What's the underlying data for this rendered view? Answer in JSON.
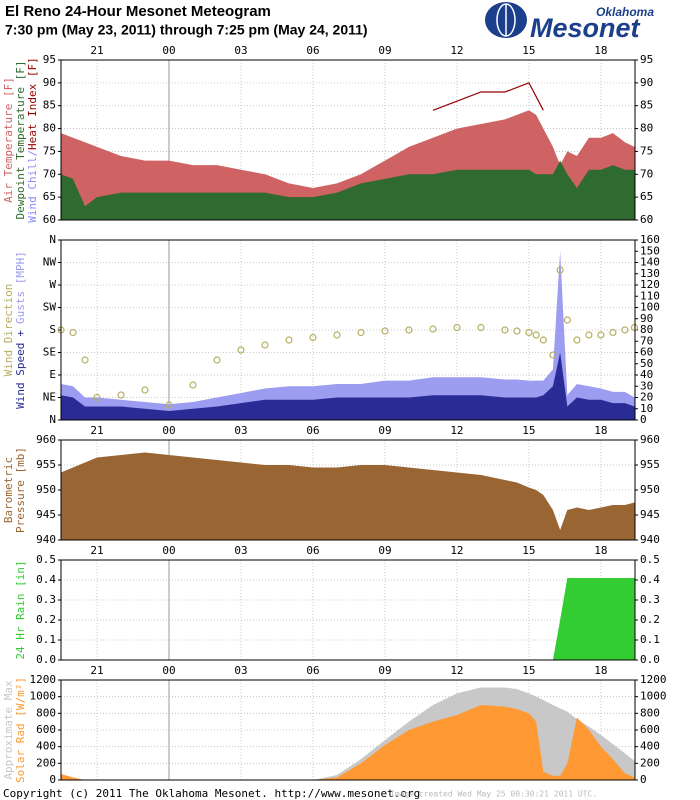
{
  "title": "El Reno 24-Hour Mesonet Meteogram",
  "subtitle": "7:30 pm (May 23, 2011) through 7:25 pm (May 24, 2011)",
  "logo": {
    "top": "Oklahoma",
    "bottom": "Mesonet"
  },
  "footer": {
    "copyright": "Copyright (c) 2011 The Oklahoma Mesonet. http://www.mesonet.org",
    "created": "Image created Wed May 25 00:30:21 2011 UTC."
  },
  "chart_data": [
    {
      "type": "area",
      "grid": true,
      "mirror_y": true,
      "xtick_labels": "top",
      "x": [
        19.5,
        20,
        20.5,
        21,
        22,
        23,
        24,
        25,
        26,
        27,
        28,
        29,
        30,
        31,
        32,
        33,
        34,
        35,
        36,
        37,
        38,
        38.5,
        39,
        39.3,
        39.6,
        40,
        40.3,
        40.6,
        41,
        41.5,
        42,
        42.5,
        43,
        43.4
      ],
      "xlim": [
        19.5,
        43.42
      ],
      "xticks": [
        {
          "value": 21,
          "label": "21"
        },
        {
          "value": 24,
          "label": "00"
        },
        {
          "value": 27,
          "label": "03"
        },
        {
          "value": 30,
          "label": "06"
        },
        {
          "value": 33,
          "label": "09"
        },
        {
          "value": 36,
          "label": "12"
        },
        {
          "value": 39,
          "label": "15"
        },
        {
          "value": 42,
          "label": "18"
        }
      ],
      "ylim": [
        60,
        95
      ],
      "yticks": [
        60,
        65,
        70,
        75,
        80,
        85,
        90,
        95
      ],
      "ylabel_extra": {
        "text": "Wind Chill/",
        "color": "#8c8cff"
      },
      "series": [
        {
          "name": "Air Temperature [F]",
          "color": "#cf6363",
          "values": [
            79,
            78,
            77,
            76,
            74,
            73,
            73,
            72,
            72,
            71,
            70,
            68,
            67,
            68,
            70,
            73,
            76,
            78,
            80,
            81,
            82,
            83,
            84,
            83,
            80,
            76,
            72,
            75,
            74,
            78,
            78,
            79,
            77,
            76
          ]
        },
        {
          "name": "Dewpoint Temperature [F]",
          "color": "#2f6a31",
          "values": [
            70,
            69,
            63,
            65,
            66,
            66,
            66,
            66,
            66,
            66,
            66,
            65,
            65,
            66,
            68,
            69,
            70,
            70,
            71,
            71,
            71,
            71,
            71,
            70,
            70,
            70,
            73,
            70,
            67,
            71,
            71,
            72,
            71,
            71
          ]
        },
        {
          "name": "Heat Index [F]",
          "color": "#990000",
          "type": "line",
          "values": [
            null,
            null,
            null,
            null,
            null,
            null,
            null,
            null,
            null,
            null,
            null,
            null,
            null,
            null,
            null,
            null,
            null,
            84,
            86,
            88,
            88,
            89,
            90,
            87,
            84,
            null,
            null,
            null,
            null,
            null,
            null,
            null,
            null,
            null
          ]
        }
      ]
    },
    {
      "type": "area",
      "grid": true,
      "xtick_labels": "bottom",
      "x": [
        19.5,
        20,
        20.5,
        21,
        22,
        23,
        24,
        25,
        26,
        27,
        28,
        29,
        30,
        31,
        32,
        33,
        34,
        35,
        36,
        37,
        38,
        38.5,
        39,
        39.3,
        39.6,
        40,
        40.3,
        40.6,
        41,
        41.5,
        42,
        42.5,
        43,
        43.4
      ],
      "xlim": [
        19.5,
        43.42
      ],
      "xticks": [
        {
          "value": 21,
          "label": "21"
        },
        {
          "value": 24,
          "label": "00"
        },
        {
          "value": 27,
          "label": "03"
        },
        {
          "value": 30,
          "label": "06"
        },
        {
          "value": 33,
          "label": "09"
        },
        {
          "value": 36,
          "label": "12"
        },
        {
          "value": 39,
          "label": "15"
        },
        {
          "value": 42,
          "label": "18"
        }
      ],
      "ylim": [
        0,
        360
      ],
      "yticks": [
        {
          "value": 0,
          "label": "N"
        },
        {
          "value": 45,
          "label": "NE"
        },
        {
          "value": 90,
          "label": "E"
        },
        {
          "value": 135,
          "label": "SE"
        },
        {
          "value": 180,
          "label": "S"
        },
        {
          "value": 225,
          "label": "SW"
        },
        {
          "value": 270,
          "label": "W"
        },
        {
          "value": 315,
          "label": "NW"
        },
        {
          "value": 360,
          "label": "N"
        }
      ],
      "y2lim": [
        0,
        160
      ],
      "y2ticks": [
        0,
        10,
        20,
        30,
        40,
        50,
        60,
        70,
        80,
        90,
        100,
        110,
        120,
        130,
        140,
        150,
        160
      ],
      "ylabel_join": "+",
      "series": [
        {
          "name": "Gusts [MPH]",
          "color": "#9c9cf0",
          "axis": "y2",
          "values": [
            32,
            30,
            20,
            20,
            18,
            16,
            14,
            16,
            20,
            24,
            28,
            30,
            30,
            32,
            32,
            35,
            35,
            38,
            38,
            38,
            36,
            36,
            35,
            35,
            35,
            45,
            150,
            22,
            32,
            30,
            28,
            25,
            25,
            20
          ]
        },
        {
          "name": "Wind Speed",
          "color": "#2b2b96",
          "axis": "y2",
          "values": [
            22,
            20,
            12,
            12,
            12,
            10,
            8,
            10,
            12,
            15,
            18,
            18,
            18,
            20,
            20,
            20,
            20,
            22,
            22,
            22,
            20,
            20,
            20,
            20,
            22,
            30,
            60,
            12,
            20,
            18,
            18,
            15,
            15,
            12
          ]
        },
        {
          "name": "Wind Direction",
          "color": "#b5ae5e",
          "type": "scatter",
          "values": [
            180,
            175,
            120,
            45,
            50,
            60,
            30,
            70,
            120,
            140,
            150,
            160,
            165,
            170,
            175,
            178,
            180,
            182,
            185,
            185,
            180,
            178,
            175,
            170,
            160,
            130,
            300,
            200,
            160,
            170,
            170,
            175,
            180,
            185
          ]
        }
      ]
    },
    {
      "type": "area",
      "grid": true,
      "mirror_y": true,
      "xtick_labels": "bottom",
      "x": [
        19.5,
        20,
        20.5,
        21,
        22,
        23,
        24,
        25,
        26,
        27,
        28,
        29,
        30,
        31,
        32,
        33,
        34,
        35,
        36,
        37,
        38,
        38.5,
        39,
        39.3,
        39.6,
        40,
        40.3,
        40.6,
        41,
        41.5,
        42,
        42.5,
        43,
        43.4
      ],
      "xlim": [
        19.5,
        43.42
      ],
      "xticks": [
        {
          "value": 21,
          "label": "21"
        },
        {
          "value": 24,
          "label": "00"
        },
        {
          "value": 27,
          "label": "03"
        },
        {
          "value": 30,
          "label": "06"
        },
        {
          "value": 33,
          "label": "09"
        },
        {
          "value": 36,
          "label": "12"
        },
        {
          "value": 39,
          "label": "15"
        },
        {
          "value": 42,
          "label": "18"
        }
      ],
      "ylim": [
        940,
        960
      ],
      "yticks": [
        940,
        945,
        950,
        955,
        960
      ],
      "ylabel": [
        "Barometric",
        "Pressure [mb]"
      ],
      "series": [
        {
          "color": "#996633",
          "values": [
            953.5,
            954.5,
            955.5,
            956.5,
            957,
            957.5,
            957,
            956.5,
            956,
            955.5,
            955,
            955,
            954.5,
            954.5,
            955,
            955,
            954.5,
            954,
            953.5,
            953,
            952,
            951.5,
            950.5,
            950,
            949,
            946,
            942,
            946,
            946.5,
            946,
            946.5,
            947,
            947,
            947.5
          ]
        }
      ]
    },
    {
      "type": "area",
      "grid": true,
      "mirror_y": true,
      "xtick_labels": "bottom",
      "x": [
        19.5,
        20,
        20.5,
        21,
        22,
        23,
        24,
        25,
        26,
        27,
        28,
        29,
        30,
        31,
        32,
        33,
        34,
        35,
        36,
        37,
        38,
        38.5,
        39,
        39.3,
        39.6,
        40,
        40.3,
        40.6,
        41,
        41.5,
        42,
        42.5,
        43,
        43.4
      ],
      "xlim": [
        19.5,
        43.42
      ],
      "xticks": [
        {
          "value": 21,
          "label": "21"
        },
        {
          "value": 24,
          "label": "00"
        },
        {
          "value": 27,
          "label": "03"
        },
        {
          "value": 30,
          "label": "06"
        },
        {
          "value": 33,
          "label": "09"
        },
        {
          "value": 36,
          "label": "12"
        },
        {
          "value": 39,
          "label": "15"
        },
        {
          "value": 42,
          "label": "18"
        }
      ],
      "ylim": [
        0,
        0.5
      ],
      "yticks": [
        {
          "value": 0,
          "label": "0.0"
        },
        0.1,
        0.2,
        0.3,
        0.4,
        0.5
      ],
      "ylabel": "24 Hr Rain [in]",
      "series": [
        {
          "color": "#33cc33",
          "values": [
            0,
            0,
            0,
            0,
            0,
            0,
            0,
            0,
            0,
            0,
            0,
            0,
            0,
            0,
            0,
            0,
            0,
            0,
            0,
            0,
            0,
            0,
            0,
            0,
            0,
            0,
            0.2,
            0.41,
            0.41,
            0.41,
            0.41,
            0.41,
            0.41,
            0.41
          ]
        }
      ]
    },
    {
      "type": "area",
      "grid": true,
      "mirror_y": true,
      "xtick_labels": "none",
      "x": [
        19.5,
        20,
        20.5,
        21,
        22,
        23,
        24,
        25,
        26,
        27,
        28,
        29,
        30,
        31,
        32,
        33,
        34,
        35,
        36,
        37,
        38,
        38.5,
        39,
        39.3,
        39.6,
        40,
        40.3,
        40.6,
        41,
        41.5,
        42,
        42.5,
        43,
        43.4
      ],
      "xlim": [
        19.5,
        43.42
      ],
      "xticks": [
        21,
        24,
        27,
        30,
        33,
        36,
        39,
        42
      ],
      "ylim": [
        0,
        1200
      ],
      "yticks": [
        0,
        200,
        400,
        600,
        800,
        1000,
        1200
      ],
      "series": [
        {
          "name": "Approximate Max",
          "color": "#c8c8c8",
          "values": [
            70,
            30,
            0,
            0,
            0,
            0,
            0,
            0,
            0,
            0,
            0,
            0,
            0,
            60,
            250,
            480,
            700,
            900,
            1040,
            1110,
            1110,
            1090,
            1040,
            1000,
            960,
            900,
            860,
            820,
            730,
            640,
            540,
            430,
            320,
            230
          ]
        },
        {
          "name": "Solar Rad [W/m²]",
          "color": "#ff9933",
          "values": [
            70,
            30,
            0,
            0,
            0,
            0,
            0,
            0,
            0,
            0,
            0,
            0,
            0,
            30,
            200,
            420,
            600,
            700,
            780,
            900,
            880,
            850,
            800,
            700,
            100,
            50,
            50,
            200,
            750,
            600,
            400,
            250,
            80,
            30
          ]
        }
      ]
    }
  ]
}
